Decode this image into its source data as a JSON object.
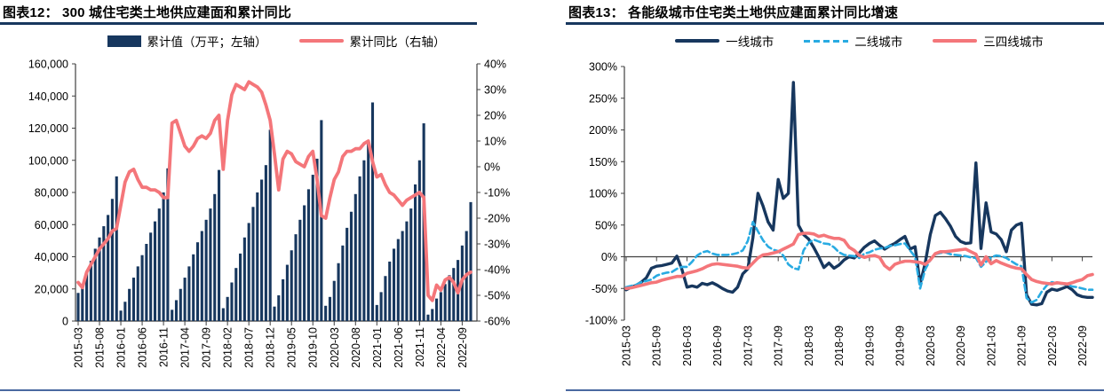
{
  "left_panel": {
    "title": "图表12： 300 城住宅类土地供应建面和累计同比",
    "legend": [
      "累计值（万平；左轴）",
      "累计同比（右轴）"
    ]
  },
  "right_panel": {
    "title": "图表13： 各能级城市住宅类土地供应建面累计同比增速",
    "legend": [
      "一线城市",
      "二线城市",
      "三四线城市"
    ]
  },
  "colors": {
    "navy": "#17375E",
    "salmon": "#F4767A",
    "sky_blue": "#29ABE2",
    "title_rule": "#17375E",
    "footer_rule": "#4A69A0",
    "axis": "#404040"
  },
  "chart_data": [
    {
      "type": "bar",
      "title": "图表12： 300 城住宅类土地供应建面和累计同比",
      "legend_position": "top",
      "grid": false,
      "x_tick_every": 5,
      "categories": [
        "2015-03",
        "2015-04",
        "2015-05",
        "2015-06",
        "2015-07",
        "2015-08",
        "2015-09",
        "2015-10",
        "2015-11",
        "2015-12",
        "2016-01",
        "2016-02",
        "2016-03",
        "2016-04",
        "2016-05",
        "2016-06",
        "2016-07",
        "2016-08",
        "2016-09",
        "2016-10",
        "2016-11",
        "2016-12",
        "2017-01",
        "2017-02",
        "2017-03",
        "2017-04",
        "2017-05",
        "2017-06",
        "2017-07",
        "2017-08",
        "2017-09",
        "2017-10",
        "2017-11",
        "2017-12",
        "2018-01",
        "2018-02",
        "2018-03",
        "2018-04",
        "2018-05",
        "2018-06",
        "2018-07",
        "2018-08",
        "2018-09",
        "2018-10",
        "2018-11",
        "2018-12",
        "2019-01",
        "2019-02",
        "2019-03",
        "2019-04",
        "2019-05",
        "2019-06",
        "2019-07",
        "2019-08",
        "2019-09",
        "2019-10",
        "2019-11",
        "2019-12",
        "2020-01",
        "2020-02",
        "2020-03",
        "2020-04",
        "2020-05",
        "2020-06",
        "2020-07",
        "2020-08",
        "2020-09",
        "2020-10",
        "2020-11",
        "2020-12",
        "2021-01",
        "2021-02",
        "2021-03",
        "2021-04",
        "2021-05",
        "2021-06",
        "2021-07",
        "2021-08",
        "2021-09",
        "2021-10",
        "2021-11",
        "2021-12",
        "2022-01",
        "2022-02",
        "2022-03",
        "2022-04",
        "2022-05",
        "2022-06",
        "2022-07",
        "2022-08",
        "2022-09",
        "2022-10",
        "2022-11"
      ],
      "left_axis": {
        "min": 0,
        "max": 160000,
        "tick_labels": [
          "0",
          "20,000",
          "40,000",
          "60,000",
          "80,000",
          "100,000",
          "120,000",
          "140,000",
          "160,000"
        ]
      },
      "right_axis": {
        "min": -0.6,
        "max": 0.4,
        "tick_labels": [
          "-60%",
          "-50%",
          "-40%",
          "-30%",
          "-20%",
          "-10%",
          "0%",
          "10%",
          "20%",
          "30%",
          "40%"
        ]
      },
      "series": [
        {
          "name": "累计值（万平；左轴）",
          "chart": "bar",
          "axis": "left",
          "color": "#17375E",
          "values": [
            17500,
            23000,
            30000,
            37500,
            45000,
            52000,
            59000,
            66000,
            76000,
            90000,
            6500,
            12000,
            20000,
            27000,
            34000,
            41000,
            48000,
            55000,
            62000,
            70000,
            80000,
            95000,
            7000,
            13000,
            20000,
            27000,
            34000,
            41500,
            49000,
            56000,
            63000,
            70000,
            79000,
            94000,
            8000,
            15000,
            24000,
            33000,
            42000,
            52000,
            61000,
            71000,
            80000,
            88000,
            97000,
            119000,
            9000,
            16000,
            26000,
            35000,
            44000,
            54000,
            63000,
            72000,
            82000,
            91000,
            101000,
            125000,
            9500,
            15000,
            25000,
            36000,
            47000,
            58000,
            68000,
            79000,
            90000,
            100000,
            112000,
            136000,
            10000,
            18000,
            28000,
            37000,
            45000,
            51000,
            56000,
            62000,
            70000,
            85000,
            100000,
            123000,
            4000,
            7500,
            14000,
            18000,
            23000,
            28500,
            33000,
            38000,
            47000,
            56000,
            74000
          ]
        },
        {
          "name": "累计同比（右轴）",
          "chart": "line",
          "axis": "right",
          "color": "#F4767A",
          "width": 3.8,
          "values": [
            -0.45,
            -0.47,
            -0.41,
            -0.38,
            -0.35,
            -0.32,
            -0.3,
            -0.28,
            -0.25,
            -0.24,
            -0.15,
            -0.06,
            -0.02,
            -0.01,
            -0.05,
            -0.08,
            -0.08,
            -0.09,
            -0.09,
            -0.1,
            -0.12,
            -0.12,
            0.17,
            0.18,
            0.13,
            0.08,
            0.06,
            0.08,
            0.11,
            0.12,
            0.11,
            0.13,
            0.18,
            0.2,
            -0.01,
            0.18,
            0.28,
            0.32,
            0.31,
            0.3,
            0.33,
            0.32,
            0.31,
            0.29,
            0.24,
            0.18,
            0.05,
            -0.09,
            0.03,
            0.06,
            0.05,
            0.02,
            0.01,
            0.0,
            0.04,
            0.06,
            -0.05,
            -0.19,
            -0.2,
            -0.12,
            -0.05,
            -0.02,
            0.04,
            0.06,
            0.06,
            0.07,
            0.07,
            0.09,
            0.1,
            0.02,
            -0.04,
            -0.03,
            -0.07,
            -0.1,
            -0.11,
            -0.13,
            -0.15,
            -0.13,
            -0.12,
            -0.11,
            -0.1,
            -0.12,
            -0.5,
            -0.52,
            -0.46,
            -0.48,
            -0.44,
            -0.43,
            -0.45,
            -0.49,
            -0.44,
            -0.42,
            -0.41
          ]
        }
      ]
    },
    {
      "type": "line",
      "title": "图表13： 各能级城市住宅类土地供应建面累计同比增速",
      "legend_position": "top",
      "grid": false,
      "zero_axis": true,
      "x_tick_every": 6,
      "categories": [
        "2015-03",
        "2015-04",
        "2015-05",
        "2015-06",
        "2015-07",
        "2015-08",
        "2015-09",
        "2015-10",
        "2015-11",
        "2015-12",
        "2016-01",
        "2016-02",
        "2016-03",
        "2016-04",
        "2016-05",
        "2016-06",
        "2016-07",
        "2016-08",
        "2016-09",
        "2016-10",
        "2016-11",
        "2016-12",
        "2017-01",
        "2017-02",
        "2017-03",
        "2017-04",
        "2017-05",
        "2017-06",
        "2017-07",
        "2017-08",
        "2017-09",
        "2017-10",
        "2017-11",
        "2017-12",
        "2018-01",
        "2018-02",
        "2018-03",
        "2018-04",
        "2018-05",
        "2018-06",
        "2018-07",
        "2018-08",
        "2018-09",
        "2018-10",
        "2018-11",
        "2018-12",
        "2019-01",
        "2019-02",
        "2019-03",
        "2019-04",
        "2019-05",
        "2019-06",
        "2019-07",
        "2019-08",
        "2019-09",
        "2019-10",
        "2019-11",
        "2019-12",
        "2020-01",
        "2020-02",
        "2020-03",
        "2020-04",
        "2020-05",
        "2020-06",
        "2020-07",
        "2020-08",
        "2020-09",
        "2020-10",
        "2020-11",
        "2020-12",
        "2021-01",
        "2021-02",
        "2021-03",
        "2021-04",
        "2021-05",
        "2021-06",
        "2021-07",
        "2021-08",
        "2021-09",
        "2021-10",
        "2021-11",
        "2021-12",
        "2022-01",
        "2022-02",
        "2022-03",
        "2022-04",
        "2022-05",
        "2022-06",
        "2022-07",
        "2022-08",
        "2022-09",
        "2022-10",
        "2022-11"
      ],
      "y_axis": {
        "min": -1.0,
        "max": 3.0,
        "tick_labels": [
          "-100%",
          "-50%",
          "0%",
          "50%",
          "100%",
          "150%",
          "200%",
          "250%",
          "300%"
        ]
      },
      "series": [
        {
          "name": "一线城市",
          "color": "#17375E",
          "dash": null,
          "width": 3.4,
          "values": [
            -0.52,
            -0.48,
            -0.45,
            -0.4,
            -0.33,
            -0.18,
            -0.15,
            -0.14,
            -0.12,
            -0.1,
            0.01,
            -0.2,
            -0.48,
            -0.46,
            -0.48,
            -0.42,
            -0.44,
            -0.41,
            -0.45,
            -0.5,
            -0.54,
            -0.56,
            -0.48,
            -0.27,
            -0.19,
            0.3,
            1.0,
            0.8,
            0.55,
            0.42,
            1.22,
            0.92,
            1.0,
            2.75,
            0.5,
            0.35,
            0.28,
            0.15,
            0.0,
            -0.17,
            -0.1,
            -0.18,
            -0.13,
            -0.05,
            0.0,
            -0.02,
            0.06,
            0.15,
            0.21,
            0.25,
            0.18,
            0.12,
            0.17,
            0.21,
            0.27,
            0.32,
            0.12,
            0.16,
            -0.43,
            -0.1,
            0.35,
            0.65,
            0.7,
            0.6,
            0.48,
            0.32,
            0.24,
            0.21,
            0.22,
            1.48,
            0.13,
            0.85,
            0.39,
            0.36,
            0.27,
            0.08,
            0.42,
            0.5,
            0.53,
            -0.6,
            -0.75,
            -0.76,
            -0.74,
            -0.56,
            -0.51,
            -0.53,
            -0.5,
            -0.47,
            -0.52,
            -0.6,
            -0.63,
            -0.64,
            -0.64
          ]
        },
        {
          "name": "二线城市",
          "color": "#29ABE2",
          "dash": "7 4",
          "width": 2.6,
          "values": [
            -0.48,
            -0.46,
            -0.44,
            -0.4,
            -0.38,
            -0.36,
            -0.3,
            -0.27,
            -0.25,
            -0.24,
            -0.19,
            -0.16,
            -0.16,
            -0.08,
            0.02,
            0.07,
            0.09,
            0.05,
            0.03,
            0.03,
            0.03,
            0.04,
            0.06,
            0.1,
            0.25,
            0.55,
            0.4,
            0.26,
            0.16,
            0.11,
            0.09,
            0.02,
            -0.12,
            -0.18,
            -0.2,
            0.1,
            0.22,
            0.27,
            0.24,
            0.21,
            0.2,
            0.15,
            0.07,
            0.03,
            0.02,
            0.01,
            -0.02,
            0.05,
            0.07,
            0.11,
            0.13,
            0.14,
            0.17,
            0.18,
            0.2,
            0.21,
            0.1,
            0.0,
            -0.5,
            -0.2,
            -0.05,
            0.04,
            0.06,
            0.07,
            0.04,
            0.03,
            0.02,
            0.01,
            -0.01,
            -0.02,
            -0.16,
            -0.08,
            -0.01,
            0.02,
            0.01,
            -0.02,
            -0.07,
            -0.12,
            -0.15,
            -0.65,
            -0.72,
            -0.68,
            -0.55,
            -0.45,
            -0.4,
            -0.42,
            -0.43,
            -0.44,
            -0.47,
            -0.48,
            -0.5,
            -0.52,
            -0.52
          ]
        },
        {
          "name": "三四线城市",
          "color": "#F4767A",
          "dash": null,
          "width": 3.6,
          "values": [
            -0.5,
            -0.49,
            -0.47,
            -0.45,
            -0.43,
            -0.41,
            -0.4,
            -0.37,
            -0.35,
            -0.33,
            -0.31,
            -0.31,
            -0.26,
            -0.24,
            -0.22,
            -0.19,
            -0.15,
            -0.12,
            -0.11,
            -0.12,
            -0.13,
            -0.14,
            -0.15,
            -0.17,
            -0.18,
            -0.1,
            -0.02,
            0.03,
            0.04,
            0.06,
            0.08,
            0.12,
            0.16,
            0.2,
            0.35,
            0.37,
            0.37,
            0.36,
            0.32,
            0.34,
            0.31,
            0.29,
            0.29,
            0.26,
            0.15,
            0.1,
            0.02,
            -0.01,
            0.01,
            0.02,
            -0.01,
            -0.14,
            -0.2,
            -0.12,
            -0.09,
            -0.07,
            -0.07,
            -0.08,
            -0.09,
            -0.12,
            -0.05,
            0.05,
            0.08,
            0.08,
            0.09,
            0.1,
            0.11,
            0.12,
            0.08,
            0.04,
            -0.13,
            0.0,
            -0.11,
            -0.06,
            -0.1,
            -0.13,
            -0.16,
            -0.18,
            -0.19,
            -0.28,
            -0.36,
            -0.39,
            -0.41,
            -0.42,
            -0.43,
            -0.41,
            -0.42,
            -0.43,
            -0.41,
            -0.38,
            -0.36,
            -0.3,
            -0.28
          ]
        }
      ]
    }
  ]
}
